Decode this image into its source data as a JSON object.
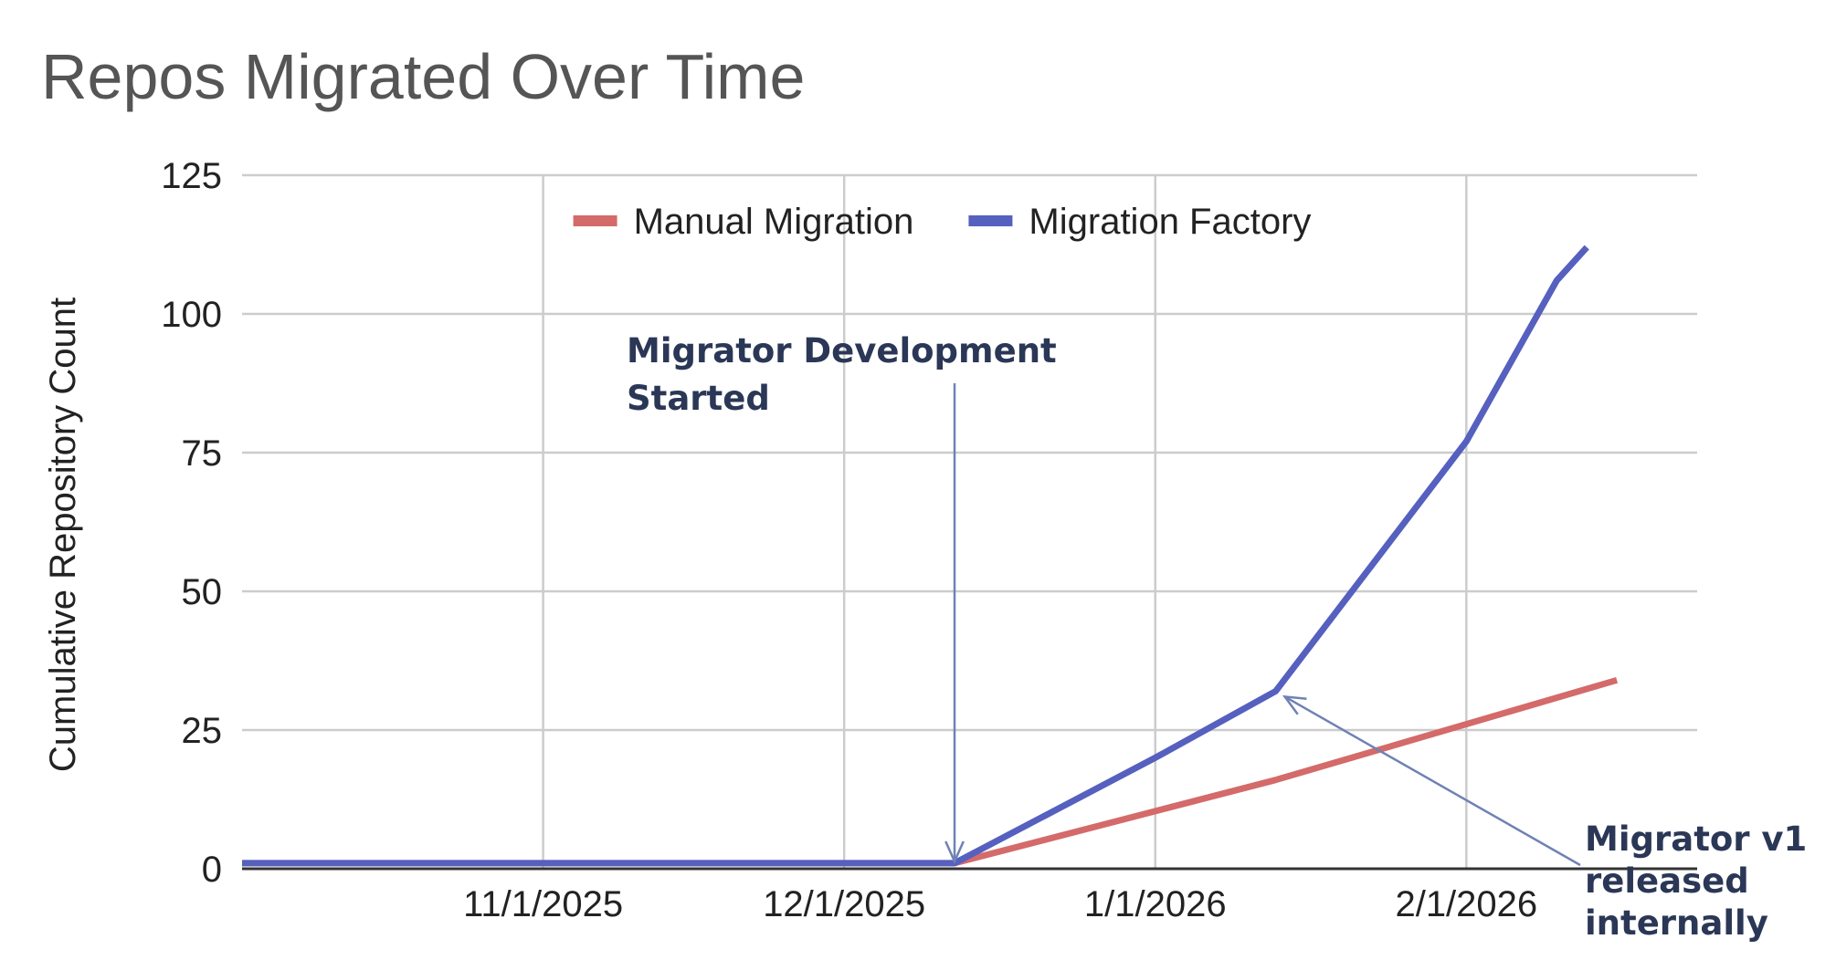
{
  "chart_data": {
    "type": "line",
    "title": "Repos Migrated Over Time",
    "xlabel": "",
    "ylabel": "Cumulative Repository Count",
    "x_type": "date",
    "xlim": [
      "2025-10-02",
      "2026-02-24"
    ],
    "ylim": [
      0,
      125
    ],
    "y_ticks": [
      0,
      25,
      50,
      75,
      100,
      125
    ],
    "x_ticks": [
      {
        "date": "2025-11-01",
        "label": "11/1/2025"
      },
      {
        "date": "2025-12-01",
        "label": "12/1/2025"
      },
      {
        "date": "2026-01-01",
        "label": "1/1/2026"
      },
      {
        "date": "2026-02-01",
        "label": "2/1/2026"
      }
    ],
    "grid": true,
    "legend_position": "top",
    "series": [
      {
        "name": "Manual Migration",
        "color": "#d46a6a",
        "points": [
          [
            "2025-10-02",
            1
          ],
          [
            "2025-12-12",
            1
          ],
          [
            "2026-01-13",
            16
          ],
          [
            "2026-02-16",
            34
          ]
        ]
      },
      {
        "name": "Migration Factory",
        "color": "#5560bf",
        "points": [
          [
            "2025-10-02",
            1
          ],
          [
            "2025-12-12",
            1
          ],
          [
            "2026-01-01",
            20
          ],
          [
            "2026-01-13",
            32
          ],
          [
            "2026-02-01",
            77
          ],
          [
            "2026-02-10",
            106
          ],
          [
            "2026-02-13",
            112
          ]
        ]
      }
    ],
    "annotations": [
      {
        "lines": [
          "Migrator Development",
          "Started"
        ],
        "target": [
          "2025-12-12",
          1
        ]
      },
      {
        "lines": [
          "Migrator v1",
          "released",
          "internally"
        ],
        "target": [
          "2026-01-13",
          32
        ]
      }
    ]
  }
}
